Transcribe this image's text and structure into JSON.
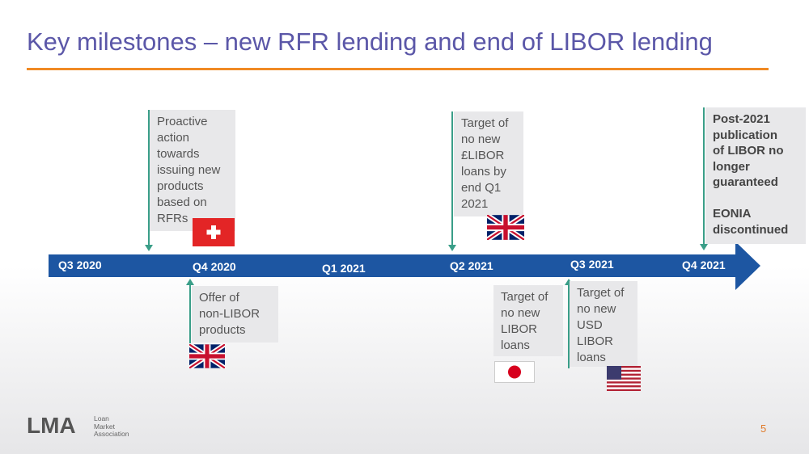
{
  "slide": {
    "title": "Key milestones – new RFR lending and end of LIBOR lending",
    "page_number": "5",
    "accent_color": "#f08a24",
    "title_color": "#5b57a8",
    "timeline_color": "#1d56a2"
  },
  "timeline": {
    "quarters": [
      "Q3 2020",
      "Q4 2020",
      "Q1 2021",
      "Q2 2021",
      "Q3 2021",
      "Q4 2021"
    ]
  },
  "milestones": {
    "switzerland": {
      "text": "Proactive\naction\ntowards\nissuing new\nproducts\nbased on\nRFRs",
      "flag": "switzerland-flag-icon"
    },
    "uk_q4": {
      "text": "Offer of\nnon-LIBOR\nproducts",
      "flag": "uk-flag-icon"
    },
    "uk_q2": {
      "text": "Target of\nno new\n£LIBOR\nloans by\nend Q1\n2021",
      "flag": "uk-flag-icon"
    },
    "japan": {
      "text": "Target of\nno new\nLIBOR\nloans",
      "flag": "japan-flag-icon"
    },
    "usa": {
      "text": "Target of\nno new\nUSD\nLIBOR\nloans",
      "flag": "us-flag-icon"
    },
    "post2021": {
      "text": "Post-2021\npublication\nof LIBOR no\nlonger\nguaranteed\n\nEONIA\ndiscontinued"
    }
  },
  "footer": {
    "logo": "LMA",
    "logo_subtitle": "Loan\nMarket\nAssociation"
  }
}
